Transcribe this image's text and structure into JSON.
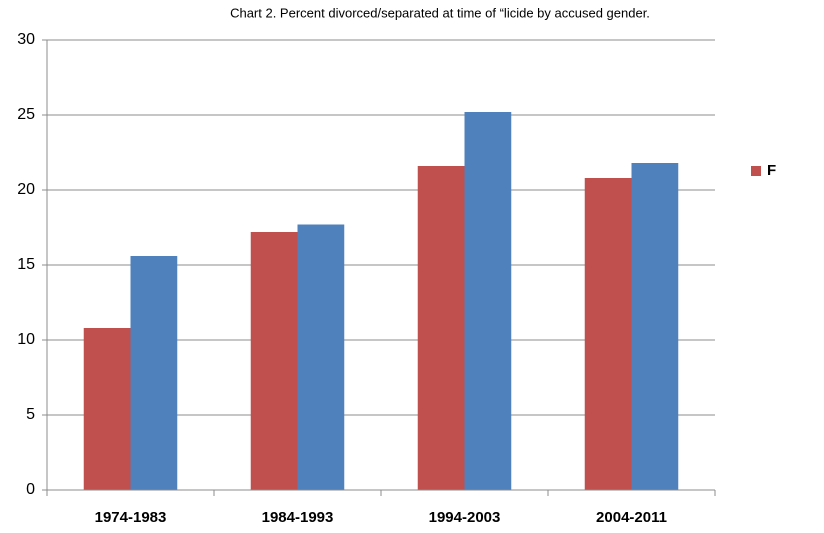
{
  "chart_data": {
    "type": "bar",
    "title": "Chart 2.  Percent divorced/separated   at time of “licide   by accused gender.",
    "categories": [
      "1974-1983",
      "1984-1993",
      "1994-2003",
      "2004-2011"
    ],
    "series": [
      {
        "name": "F",
        "color": "#c0504d",
        "values": [
          10.8,
          17.2,
          21.6,
          20.8
        ]
      },
      {
        "color": "#4f81bd",
        "values": [
          15.6,
          17.7,
          25.2,
          21.8
        ]
      }
    ],
    "ylim": [
      0,
      30
    ],
    "yticks": [
      0,
      5,
      10,
      15,
      20,
      25,
      30
    ],
    "grid": true
  }
}
